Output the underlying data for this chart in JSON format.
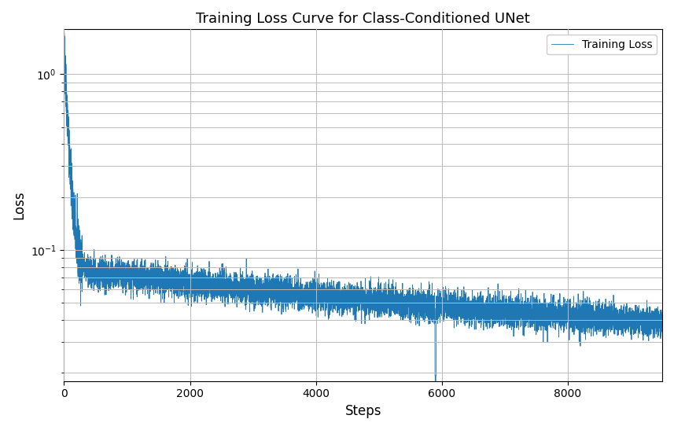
{
  "title": "Training Loss Curve for Class-Conditioned UNet",
  "xlabel": "Steps",
  "ylabel": "Loss",
  "line_color": "#1f77b4",
  "line_width": 0.6,
  "legend_label": "Training Loss",
  "total_steps": 9500,
  "seed": 42,
  "figsize": [
    8.57,
    5.47
  ],
  "dpi": 100,
  "ylim_bottom": 0.018,
  "ylim_top": 1.8,
  "xlim": [
    0,
    9500
  ],
  "grid_color": "#bbbbbb",
  "background_color": "#ffffff",
  "title_fontsize": 13,
  "label_fontsize": 12
}
